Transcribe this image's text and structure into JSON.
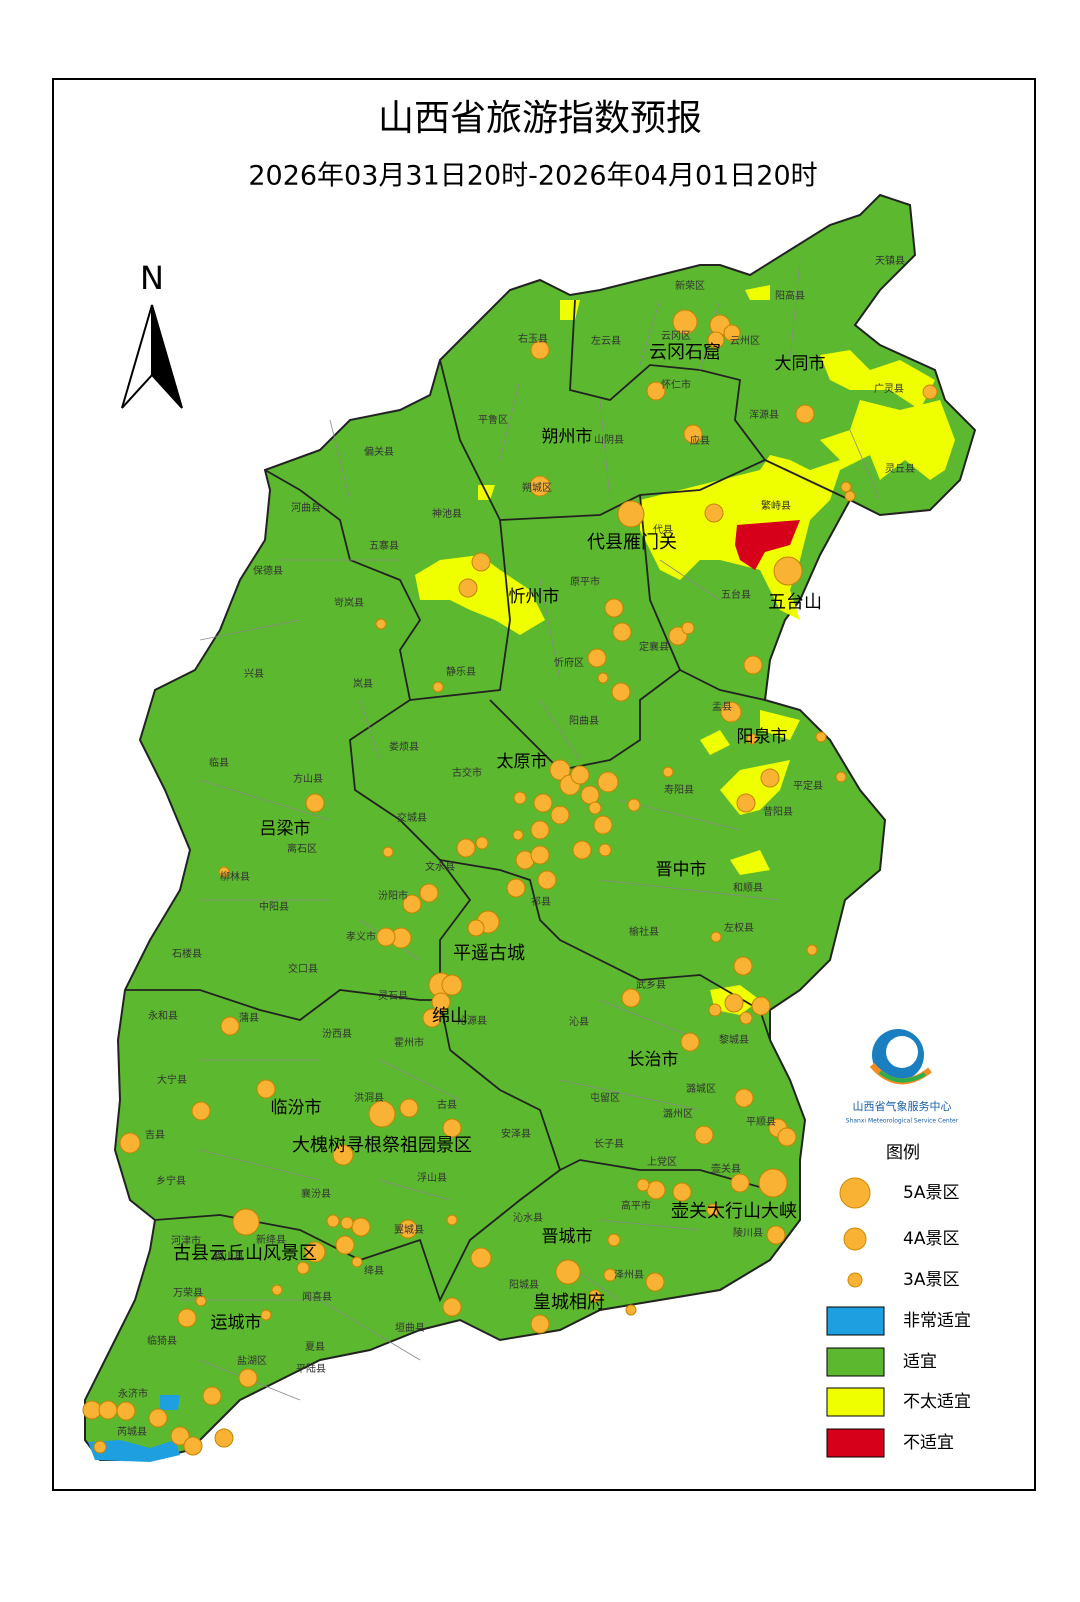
{
  "header": {
    "title": "山西省旅游指数预报",
    "subtitle": "2026年03月31日20时-2026年04月01日20时"
  },
  "compass": {
    "label": "N"
  },
  "cities": [
    "大同市",
    "朔州市",
    "忻州市",
    "阳泉市",
    "太原市",
    "吕梁市",
    "晋中市",
    "长治市",
    "临汾市",
    "晋城市",
    "运城市"
  ],
  "scenic_spots": [
    "云冈石窟",
    "代县雁门关",
    "五台山",
    "平遥古城",
    "绵山",
    "大槐树寻根祭祖园景区",
    "壶关太行山大峡",
    "古县云丘山风景区",
    "皇城相府"
  ],
  "counties": [
    "天镇县",
    "新荣区",
    "阳高县",
    "右玉县",
    "左云县",
    "云冈区",
    "云州区",
    "广灵县",
    "怀仁市",
    "浑源县",
    "平鲁区",
    "山阴县",
    "应县",
    "灵丘县",
    "偏关县",
    "河曲县",
    "神池县",
    "朔城区",
    "繁峙县",
    "代县",
    "五寨县",
    "保德县",
    "岢岚县",
    "原平市",
    "五台县",
    "定襄县",
    "静乐县",
    "忻府区",
    "兴县",
    "岚县",
    "阳曲县",
    "娄烦县",
    "盂县",
    "古交市",
    "平定县",
    "方山县",
    "临县",
    "离石区",
    "交城县",
    "寿阳县",
    "昔阳县",
    "文水县",
    "汾阳市",
    "柳林县",
    "中阳县",
    "孝义市",
    "祁县",
    "和顺县",
    "榆社县",
    "石楼县",
    "交口县",
    "左权县",
    "灵石县",
    "武乡县",
    "永和县",
    "汾西县",
    "霍州市",
    "沁源县",
    "沁县",
    "黎城县",
    "大宁县",
    "蒲县",
    "洪洞县",
    "古县",
    "安泽县",
    "屯留区",
    "潞城区",
    "潞州区",
    "平顺县",
    "吉县",
    "乡宁县",
    "襄汾县",
    "浮山县",
    "长子县",
    "上党区",
    "壶关县",
    "河津市",
    "新绛县",
    "翼城县",
    "沁水县",
    "高平市",
    "陵川县",
    "稷山县",
    "万荣县",
    "闻喜县",
    "绛县",
    "垣曲县",
    "阳城县",
    "泽州县",
    "临猗县",
    "夏县",
    "盐湖区",
    "平陆县",
    "永济市",
    "芮城县"
  ],
  "legend": {
    "title": "图例",
    "items": [
      "5A景区",
      "4A景区",
      "3A景区",
      "非常适宜",
      "适宜",
      "不太适宜",
      "不适宜"
    ]
  },
  "logo": {
    "name": "山西省气象服务中心",
    "name_en": "Shanxi Meteorological Service Center"
  }
}
